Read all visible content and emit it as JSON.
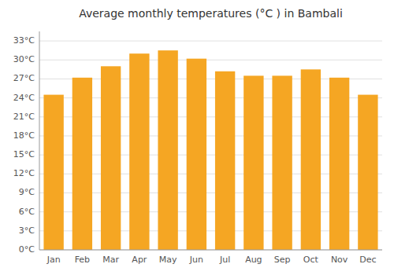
{
  "chart_data": {
    "type": "bar",
    "title": "Average monthly temperatures (°C ) in Bambali",
    "categories": [
      "Jan",
      "Feb",
      "Mar",
      "Apr",
      "May",
      "Jun",
      "Jul",
      "Aug",
      "Sep",
      "Oct",
      "Nov",
      "Dec"
    ],
    "values": [
      24.5,
      27.2,
      29.0,
      31.0,
      31.5,
      30.2,
      28.2,
      27.5,
      27.5,
      28.5,
      27.2,
      24.5
    ],
    "color": "#F5A623",
    "ylim": [
      0,
      34.5
    ],
    "yticks": [
      {
        "value": 0,
        "label": "0°C"
      },
      {
        "value": 3,
        "label": "3°C"
      },
      {
        "value": 6,
        "label": "6°C"
      },
      {
        "value": 9,
        "label": "9°C"
      },
      {
        "value": 12,
        "label": "12°C"
      },
      {
        "value": 15,
        "label": "15°C"
      },
      {
        "value": 18,
        "label": "18°C"
      },
      {
        "value": 21,
        "label": "21°C"
      },
      {
        "value": 24,
        "label": "24°C"
      },
      {
        "value": 27,
        "label": "27°C"
      },
      {
        "value": 30,
        "label": "30°C"
      },
      {
        "value": 33,
        "label": "33°C"
      }
    ],
    "grid": true
  }
}
